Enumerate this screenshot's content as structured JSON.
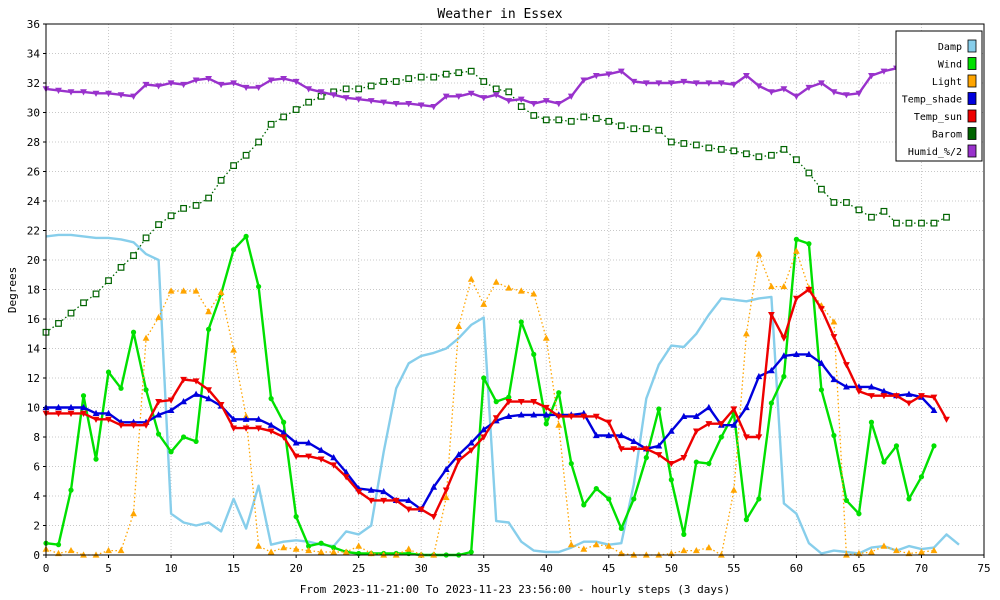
{
  "chart_data": {
    "type": "line",
    "title": "Weather in Essex",
    "ylabel": "Degrees",
    "xlabel": "From 2023-11-21:00 To 2023-11-23 23:56:00 - hourly steps (3 days)",
    "xlim": [
      0,
      75
    ],
    "ylim": [
      0,
      36
    ],
    "x_ticks": [
      0,
      5,
      10,
      15,
      20,
      25,
      30,
      35,
      40,
      45,
      50,
      55,
      60,
      65,
      70,
      75
    ],
    "y_ticks": [
      0,
      2,
      4,
      6,
      8,
      10,
      12,
      14,
      16,
      18,
      20,
      22,
      24,
      26,
      28,
      30,
      32,
      34,
      36
    ],
    "grid": true,
    "legend_position": "top-right",
    "series": [
      {
        "name": "Damp",
        "color": "#87ceeb",
        "marker": "none",
        "style": "solid",
        "values": [
          21.6,
          21.7,
          21.7,
          21.6,
          21.5,
          21.5,
          21.4,
          21.2,
          20.4,
          20.0,
          2.8,
          2.2,
          2.0,
          2.2,
          1.6,
          3.8,
          1.8,
          4.7,
          0.7,
          0.9,
          1.0,
          0.9,
          0.7,
          0.6,
          1.6,
          1.4,
          2.0,
          7.0,
          11.3,
          13.0,
          13.5,
          13.7,
          14.0,
          14.7,
          15.6,
          16.1,
          2.3,
          2.2,
          0.9,
          0.3,
          0.2,
          0.2,
          0.5,
          0.9,
          0.9,
          0.7,
          0.8,
          4.8,
          10.6,
          12.9,
          14.2,
          14.1,
          15.0,
          16.3,
          17.4,
          17.3,
          17.2,
          17.4,
          17.5,
          3.5,
          2.8,
          0.8,
          0.1,
          0.3,
          0.2,
          0.1,
          0.5,
          0.6,
          0.3,
          0.6,
          0.4,
          0.5,
          1.4,
          0.7
        ]
      },
      {
        "name": "Wind",
        "color": "#00e000",
        "marker": "circle",
        "style": "solid",
        "values": [
          0.8,
          0.7,
          4.4,
          10.8,
          6.5,
          12.4,
          11.3,
          15.1,
          11.2,
          8.2,
          7.0,
          8.0,
          7.7,
          15.3,
          17.7,
          20.7,
          21.6,
          18.2,
          10.6,
          9.0,
          2.6,
          0.6,
          0.8,
          0.5,
          0.2,
          0.1,
          0.1,
          0.1,
          0.1,
          0.1,
          0.0,
          0.0,
          0.0,
          0.0,
          0.2,
          12.0,
          10.4,
          10.7,
          15.8,
          13.6,
          8.9,
          11.0,
          6.2,
          3.4,
          4.5,
          3.8,
          1.8,
          3.8,
          6.6,
          9.9,
          5.1,
          1.4,
          6.3,
          6.2,
          8.0,
          9.6,
          2.4,
          3.8,
          10.3,
          12.1,
          21.4,
          21.1,
          11.2,
          8.1,
          3.7,
          2.8,
          9.0,
          6.3,
          7.4,
          3.8,
          5.3,
          7.4
        ]
      },
      {
        "name": "Light",
        "color": "#ffa500",
        "marker": "triangle",
        "style": "dotted",
        "values": [
          0.4,
          0.1,
          0.3,
          0.0,
          0.0,
          0.3,
          0.3,
          2.8,
          14.7,
          16.1,
          17.9,
          17.9,
          17.9,
          16.5,
          17.8,
          13.9,
          9.4,
          0.6,
          0.2,
          0.5,
          0.4,
          0.3,
          0.2,
          0.2,
          0.2,
          0.6,
          0.1,
          0.0,
          0.0,
          0.4,
          0.0,
          0.0,
          3.9,
          15.5,
          18.7,
          17.0,
          18.5,
          18.1,
          17.9,
          17.7,
          14.7,
          8.8,
          0.7,
          0.4,
          0.7,
          0.6,
          0.1,
          0.0,
          0.0,
          0.0,
          0.1,
          0.3,
          0.3,
          0.5,
          0.0,
          4.4,
          15.0,
          20.4,
          18.2,
          18.2,
          20.6,
          18.1,
          16.9,
          15.8,
          0.0,
          0.1,
          0.2,
          0.6,
          0.3,
          0.1,
          0.2,
          0.3
        ]
      },
      {
        "name": "Temp_shade",
        "color": "#0000dd",
        "marker": "triangle",
        "style": "solid",
        "values": [
          10.0,
          10.0,
          10.0,
          10.0,
          9.6,
          9.6,
          9.0,
          9.0,
          9.0,
          9.5,
          9.8,
          10.4,
          10.9,
          10.6,
          10.1,
          9.2,
          9.2,
          9.2,
          8.8,
          8.3,
          7.6,
          7.6,
          7.1,
          6.6,
          5.6,
          4.5,
          4.4,
          4.3,
          3.7,
          3.7,
          3.1,
          4.6,
          5.8,
          6.8,
          7.6,
          8.5,
          9.1,
          9.4,
          9.5,
          9.5,
          9.5,
          9.5,
          9.5,
          9.6,
          8.1,
          8.1,
          8.1,
          7.7,
          7.2,
          7.4,
          8.4,
          9.4,
          9.4,
          10.0,
          8.8,
          8.8,
          10.0,
          12.1,
          12.5,
          13.5,
          13.6,
          13.6,
          13.0,
          11.9,
          11.4,
          11.4,
          11.4,
          11.1,
          10.8,
          10.9,
          10.7,
          9.8
        ]
      },
      {
        "name": "Temp_sun",
        "color": "#ee0000",
        "marker": "triangle-down",
        "style": "solid",
        "values": [
          9.6,
          9.6,
          9.6,
          9.6,
          9.2,
          9.2,
          8.8,
          8.8,
          8.8,
          10.4,
          10.5,
          11.9,
          11.8,
          11.2,
          10.2,
          8.6,
          8.6,
          8.6,
          8.4,
          8.0,
          6.7,
          6.7,
          6.5,
          6.1,
          5.3,
          4.3,
          3.7,
          3.7,
          3.7,
          3.1,
          3.1,
          2.6,
          4.4,
          6.4,
          7.1,
          8.0,
          9.3,
          10.4,
          10.4,
          10.4,
          10.0,
          9.4,
          9.4,
          9.4,
          9.4,
          9.0,
          7.2,
          7.2,
          7.2,
          6.8,
          6.2,
          6.6,
          8.4,
          8.9,
          8.9,
          9.9,
          8.0,
          8.0,
          16.3,
          14.7,
          17.4,
          18.0,
          16.7,
          14.8,
          12.9,
          11.1,
          10.8,
          10.8,
          10.8,
          10.3,
          10.8,
          10.7,
          9.2
        ]
      },
      {
        "name": "Barom",
        "color": "#006400",
        "marker": "square",
        "style": "dotted",
        "values": [
          15.1,
          15.7,
          16.4,
          17.1,
          17.7,
          18.6,
          19.5,
          20.3,
          21.5,
          22.4,
          23.0,
          23.5,
          23.7,
          24.2,
          25.4,
          26.4,
          27.1,
          28.0,
          29.2,
          29.7,
          30.2,
          30.7,
          31.1,
          31.4,
          31.6,
          31.6,
          31.8,
          32.1,
          32.1,
          32.3,
          32.4,
          32.4,
          32.6,
          32.7,
          32.8,
          32.1,
          31.6,
          31.4,
          30.4,
          29.8,
          29.5,
          29.5,
          29.4,
          29.7,
          29.6,
          29.4,
          29.1,
          28.9,
          28.9,
          28.8,
          28.0,
          27.9,
          27.8,
          27.6,
          27.5,
          27.4,
          27.2,
          27.0,
          27.1,
          27.5,
          26.8,
          25.9,
          24.8,
          23.9,
          23.9,
          23.4,
          22.9,
          23.3,
          22.5,
          22.5,
          22.5,
          22.5,
          22.9
        ]
      },
      {
        "name": "Humid_%/2",
        "color": "#9932cc",
        "marker": "triangle-down",
        "style": "solid",
        "values": [
          31.6,
          31.5,
          31.4,
          31.4,
          31.3,
          31.3,
          31.2,
          31.1,
          31.9,
          31.8,
          32.0,
          31.9,
          32.2,
          32.3,
          31.9,
          32.0,
          31.7,
          31.7,
          32.2,
          32.3,
          32.1,
          31.6,
          31.4,
          31.2,
          31.0,
          30.9,
          30.8,
          30.7,
          30.6,
          30.6,
          30.5,
          30.4,
          31.1,
          31.1,
          31.3,
          31.0,
          31.2,
          30.8,
          30.9,
          30.6,
          30.8,
          30.6,
          31.1,
          32.2,
          32.5,
          32.6,
          32.8,
          32.1,
          32.0,
          32.0,
          32.0,
          32.1,
          32.0,
          32.0,
          32.0,
          31.9,
          32.5,
          31.8,
          31.4,
          31.6,
          31.1,
          31.7,
          32.0,
          31.4,
          31.2,
          31.3,
          32.5,
          32.8,
          33.0,
          33.0,
          33.1,
          33.1
        ]
      }
    ]
  }
}
